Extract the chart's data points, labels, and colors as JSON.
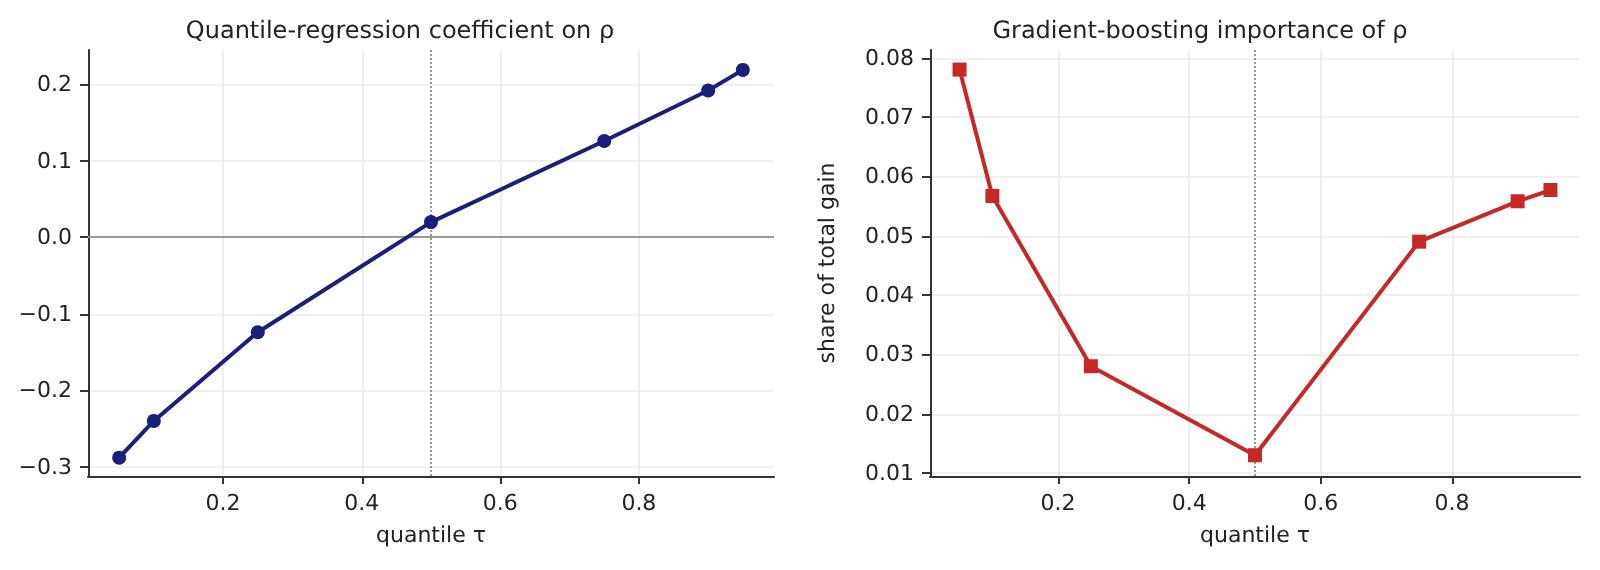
{
  "chart_data": [
    {
      "type": "line",
      "title": "Quantile-regression coefficient on ρ",
      "xlabel": "quantile τ",
      "x": [
        0.05,
        0.1,
        0.25,
        0.5,
        0.75,
        0.9,
        0.95
      ],
      "series": [
        {
          "color": "#1a1f7a",
          "values": [
            -0.288,
            -0.24,
            -0.124,
            0.02,
            0.126,
            0.192,
            0.219
          ]
        }
      ],
      "xlim": [
        0.005,
        0.995
      ],
      "xticks": [
        0.2,
        0.4,
        0.6,
        0.8
      ],
      "ylim": [
        -0.312,
        0.245
      ],
      "yticks": [
        {
          "value": -0.3,
          "label": "−0.3"
        },
        {
          "value": -0.2,
          "label": "−0.2"
        },
        {
          "value": -0.1,
          "label": "−0.1"
        },
        {
          "value": 0,
          "label": "0.0"
        },
        0.1,
        0.2
      ],
      "ref_lines": [
        {
          "axis": "x",
          "value": 0.5,
          "color": "#999999",
          "line_style": "dotted"
        },
        {
          "axis": "y",
          "value": 0,
          "color": "#999999",
          "line_style": "solid"
        }
      ],
      "grid": true,
      "marker": "circle",
      "line_style": "solid"
    },
    {
      "type": "line",
      "title": "Gradient-boosting importance of ρ",
      "xlabel": "quantile τ",
      "ylabel": "share of total gain",
      "x": [
        0.05,
        0.1,
        0.25,
        0.5,
        0.75,
        0.9,
        0.95
      ],
      "series": [
        {
          "color": "#c62828",
          "values": [
            0.078,
            0.0567,
            0.028,
            0.013,
            0.049,
            0.0558,
            0.0577
          ]
        }
      ],
      "xlim": [
        0.005,
        0.995
      ],
      "xticks": [
        0.2,
        0.4,
        0.6,
        0.8
      ],
      "ylim": [
        0.0095,
        0.0813
      ],
      "yticks": [
        0.01,
        0.02,
        0.03,
        0.04,
        0.05,
        0.06,
        0.07,
        0.08
      ],
      "ref_lines": [
        {
          "axis": "x",
          "value": 0.5,
          "color": "#999999",
          "line_style": "dotted"
        }
      ],
      "grid": true,
      "marker": "square",
      "line_style": "solid"
    }
  ]
}
